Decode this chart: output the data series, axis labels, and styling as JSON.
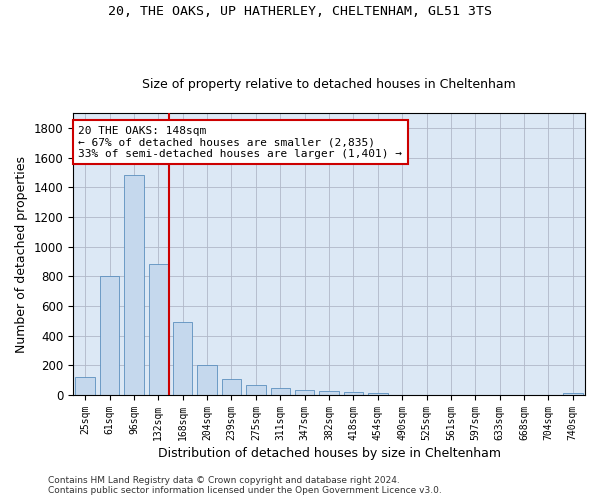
{
  "title_line1": "20, THE OAKS, UP HATHERLEY, CHELTENHAM, GL51 3TS",
  "title_line2": "Size of property relative to detached houses in Cheltenham",
  "xlabel": "Distribution of detached houses by size in Cheltenham",
  "ylabel": "Number of detached properties",
  "footnote": "Contains HM Land Registry data © Crown copyright and database right 2024.\nContains public sector information licensed under the Open Government Licence v3.0.",
  "categories": [
    "25sqm",
    "61sqm",
    "96sqm",
    "132sqm",
    "168sqm",
    "204sqm",
    "239sqm",
    "275sqm",
    "311sqm",
    "347sqm",
    "382sqm",
    "418sqm",
    "454sqm",
    "490sqm",
    "525sqm",
    "561sqm",
    "597sqm",
    "633sqm",
    "668sqm",
    "704sqm",
    "740sqm"
  ],
  "values": [
    125,
    800,
    1480,
    880,
    490,
    205,
    105,
    65,
    45,
    35,
    30,
    22,
    15,
    0,
    0,
    0,
    0,
    0,
    0,
    0,
    15
  ],
  "bar_color": "#c5d8ed",
  "bar_edgecolor": "#5b8fbe",
  "ax_facecolor": "#dce8f5",
  "background_color": "#ffffff",
  "grid_color": "#b0b8c8",
  "vline_x": 3.42,
  "vline_color": "#cc0000",
  "annotation_text": "20 THE OAKS: 148sqm\n← 67% of detached houses are smaller (2,835)\n33% of semi-detached houses are larger (1,401) →",
  "annotation_box_color": "#cc0000",
  "ylim": [
    0,
    1900
  ],
  "yticks": [
    0,
    200,
    400,
    600,
    800,
    1000,
    1200,
    1400,
    1600,
    1800
  ],
  "title1_fontsize": 9.5,
  "title2_fontsize": 9,
  "ylabel_fontsize": 9,
  "xlabel_fontsize": 9,
  "annot_fontsize": 8,
  "ytick_fontsize": 8.5,
  "xtick_fontsize": 7
}
